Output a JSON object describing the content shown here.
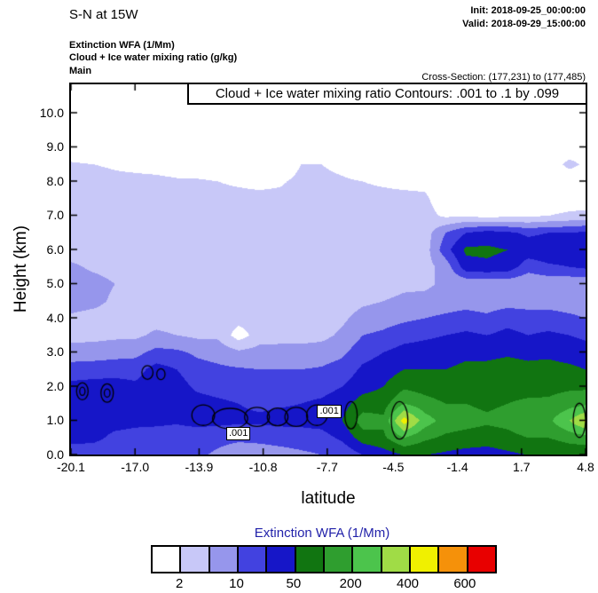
{
  "header": {
    "title": "S-N at 15W",
    "init": "Init: 2018-09-25_00:00:00",
    "valid": "Valid: 2018-09-29_15:00:00",
    "field_line1": "Extinction WFA  (1/Mm)",
    "field_line2": "Cloud + Ice water mixing ratio  (g/kg)",
    "field_line3": "Main",
    "cross_section": "Cross-Section: (177,231) to (177,485)"
  },
  "chart_data": {
    "type": "heatmap",
    "title_banner": "Cloud + Ice water mixing ratio Contours: .001 to .1 by .099",
    "field_name": "Extinction WFA (1/Mm)",
    "overlay_field": "Cloud + Ice water mixing ratio (g/kg)",
    "xlabel": "latitude",
    "ylabel": "Height (km)",
    "xlim": [
      -20.1,
      4.8
    ],
    "ylim": [
      0,
      10.83
    ],
    "grid_on": false,
    "x_ticks": [
      {
        "label": "-20.1",
        "value": -20.1
      },
      {
        "label": "-17.0",
        "value": -17.0
      },
      {
        "label": "-13.9",
        "value": -13.9
      },
      {
        "label": "-10.8",
        "value": -10.8
      },
      {
        "label": "-7.7",
        "value": -7.7
      },
      {
        "label": "-4.5",
        "value": -4.5
      },
      {
        "label": "-1.4",
        "value": -1.4
      },
      {
        "label": "1.7",
        "value": 1.7
      },
      {
        "label": "4.8",
        "value": 4.8
      }
    ],
    "y_ticks": [
      {
        "label": "0.0",
        "value": 0
      },
      {
        "label": "1.0",
        "value": 1
      },
      {
        "label": "2.0",
        "value": 2
      },
      {
        "label": "3.0",
        "value": 3
      },
      {
        "label": "4.0",
        "value": 4
      },
      {
        "label": "5.0",
        "value": 5
      },
      {
        "label": "6.0",
        "value": 6
      },
      {
        "label": "7.0",
        "value": 7
      },
      {
        "label": "8.0",
        "value": 8
      },
      {
        "label": "9.0",
        "value": 9
      },
      {
        "label": "10.0",
        "value": 10
      }
    ],
    "palette": [
      "#ffffff",
      "#c8c8f8",
      "#9696ec",
      "#4242e0",
      "#1616c8",
      "#117511",
      "#2f9e2f",
      "#4cc44c",
      "#a0dc46",
      "#f0f000",
      "#f5910a",
      "#e80000"
    ],
    "grid": {
      "lat": [
        -20.1,
        -19,
        -18,
        -17,
        -16,
        -15,
        -14,
        -13,
        -12,
        -11,
        -10,
        -9,
        -8,
        -7,
        -6,
        -5,
        -4,
        -3,
        -2,
        -1,
        0,
        1,
        2,
        3,
        4,
        4.8
      ],
      "height_km": [
        0,
        0.5,
        1,
        1.5,
        2,
        2.5,
        3,
        3.5,
        4,
        4.5,
        5,
        5.5,
        6,
        6.5,
        7,
        7.5,
        8,
        8.5,
        9,
        9.5,
        10,
        10.8
      ],
      "level_values_by_column": [
        [
          3.5,
          4.3,
          4.6,
          4.6,
          4.3,
          3.4,
          2.5,
          1.6,
          1.8,
          2.5,
          2.5,
          2.2,
          1.5,
          1.4,
          1.4,
          1.4,
          1.3,
          1.1,
          0.4,
          0.2,
          0.1,
          0.1
        ],
        [
          3.5,
          4.2,
          4.4,
          4.6,
          4.4,
          3.5,
          2.5,
          1.7,
          1.6,
          2.3,
          2.4,
          1.8,
          1.5,
          1.4,
          1.4,
          1.4,
          1.3,
          1.0,
          0.3,
          0.1,
          0.1,
          0.1
        ],
        [
          3.4,
          3.8,
          4.3,
          4.6,
          4.4,
          3.6,
          2.6,
          1.8,
          1.5,
          1.8,
          2.0,
          1.6,
          1.4,
          1.4,
          1.4,
          1.3,
          1.2,
          0.9,
          0.2,
          0.1,
          0.1,
          0.1
        ],
        [
          3.3,
          3.7,
          4.2,
          4.5,
          4.2,
          3.6,
          2.7,
          1.8,
          1.5,
          1.5,
          1.5,
          1.5,
          1.4,
          1.4,
          1.4,
          1.3,
          1.2,
          0.8,
          0.2,
          0.1,
          0.1,
          0.1
        ],
        [
          3.3,
          3.6,
          4.2,
          4.6,
          4.6,
          4.4,
          3.3,
          2.2,
          1.6,
          1.5,
          1.5,
          1.5,
          1.4,
          1.4,
          1.3,
          1.3,
          1.2,
          0.7,
          0.2,
          0.1,
          0.1,
          0.1
        ],
        [
          3.3,
          3.6,
          4.1,
          4.5,
          4.4,
          4.0,
          3.2,
          2.0,
          1.5,
          1.4,
          1.4,
          1.4,
          1.4,
          1.3,
          1.3,
          1.3,
          1.1,
          0.6,
          0.2,
          0.1,
          0.1,
          0.1
        ],
        [
          3.2,
          3.5,
          4.3,
          4.4,
          3.8,
          3.4,
          2.8,
          1.8,
          1.5,
          1.4,
          1.4,
          1.4,
          1.4,
          1.3,
          1.3,
          1.2,
          1.1,
          0.5,
          0.2,
          0.1,
          0.1,
          0.1
        ],
        [
          2.8,
          3.3,
          4.3,
          4.2,
          3.6,
          3.2,
          2.6,
          1.8,
          1.5,
          1.4,
          1.4,
          1.4,
          1.3,
          1.3,
          1.3,
          1.2,
          1.0,
          0.4,
          0.1,
          0.1,
          0.1,
          0.1
        ],
        [
          2.4,
          3.2,
          4.2,
          4.0,
          3.5,
          3.1,
          2.2,
          0.5,
          1.4,
          1.4,
          1.4,
          1.3,
          1.3,
          1.3,
          1.3,
          1.2,
          0.9,
          0.3,
          0.1,
          0.1,
          0.1,
          0.1
        ],
        [
          2.4,
          3.3,
          4.2,
          3.8,
          3.4,
          3.0,
          2.4,
          1.5,
          1.4,
          1.4,
          1.3,
          1.3,
          1.3,
          1.3,
          1.2,
          1.2,
          0.8,
          0.3,
          0.1,
          0.1,
          0.1,
          0.1
        ],
        [
          2.6,
          3.4,
          4.3,
          3.9,
          3.4,
          3.0,
          2.4,
          1.6,
          1.4,
          1.4,
          1.3,
          1.3,
          1.3,
          1.3,
          1.2,
          1.2,
          0.9,
          0.4,
          0.1,
          0.1,
          0.1,
          0.1
        ],
        [
          2.8,
          3.5,
          4.3,
          4.0,
          3.5,
          3.0,
          2.4,
          1.6,
          1.5,
          1.4,
          1.4,
          1.3,
          1.3,
          1.3,
          1.3,
          1.3,
          1.2,
          1.0,
          0.3,
          0.1,
          0.1,
          0.1
        ],
        [
          3.0,
          3.6,
          4.4,
          4.2,
          3.6,
          3.1,
          2.5,
          1.7,
          1.5,
          1.4,
          1.4,
          1.4,
          1.3,
          1.3,
          1.3,
          1.3,
          1.2,
          1.0,
          0.3,
          0.1,
          0.1,
          0.1
        ],
        [
          3.2,
          4.2,
          5.0,
          4.6,
          4.0,
          3.4,
          2.8,
          2.2,
          1.8,
          1.5,
          1.4,
          1.4,
          1.4,
          1.3,
          1.3,
          1.3,
          1.1,
          0.8,
          0.2,
          0.1,
          0.1,
          0.1
        ],
        [
          4.0,
          5.5,
          6.5,
          5.5,
          4.6,
          4.2,
          3.6,
          3.0,
          2.4,
          1.8,
          1.5,
          1.4,
          1.4,
          1.4,
          1.3,
          1.2,
          1.0,
          0.5,
          0.2,
          0.1,
          0.1,
          0.1
        ],
        [
          4.5,
          5.8,
          6.2,
          5.6,
          5.0,
          4.5,
          4.0,
          3.2,
          2.6,
          2.0,
          1.6,
          1.5,
          1.4,
          1.4,
          1.3,
          1.2,
          0.9,
          0.4,
          0.1,
          0.1,
          0.1,
          0.1
        ],
        [
          5.0,
          7.0,
          9.5,
          7.0,
          5.8,
          5.0,
          4.4,
          3.6,
          2.8,
          2.2,
          1.8,
          1.6,
          1.5,
          1.4,
          1.3,
          1.2,
          0.8,
          0.3,
          0.1,
          0.1,
          0.1,
          0.1
        ],
        [
          5.0,
          6.2,
          7.5,
          6.4,
          5.6,
          5.0,
          4.5,
          3.8,
          3.0,
          2.3,
          1.8,
          1.6,
          1.5,
          1.5,
          1.4,
          1.2,
          0.7,
          0.3,
          0.1,
          0.1,
          0.1,
          0.1
        ],
        [
          4.8,
          5.8,
          6.6,
          6.0,
          5.4,
          5.0,
          4.6,
          4.0,
          3.2,
          2.5,
          2.2,
          2.4,
          3.6,
          3.0,
          0.8,
          0.3,
          0.2,
          0.1,
          0.1,
          0.1,
          0.1,
          0.1
        ],
        [
          4.6,
          5.6,
          6.4,
          6.0,
          5.6,
          5.2,
          4.8,
          4.2,
          3.4,
          2.6,
          2.2,
          4.6,
          5.2,
          4.0,
          0.9,
          0.3,
          0.2,
          0.1,
          0.1,
          0.1,
          0.1,
          0.1
        ],
        [
          4.6,
          5.4,
          6.2,
          5.8,
          5.5,
          5.2,
          4.8,
          4.0,
          3.2,
          2.5,
          2.2,
          4.8,
          5.2,
          4.4,
          0.6,
          0.2,
          0.1,
          0.1,
          0.1,
          0.1,
          0.1,
          0.1
        ],
        [
          4.8,
          5.6,
          6.4,
          6.0,
          5.6,
          5.3,
          4.9,
          4.3,
          3.6,
          2.6,
          2.3,
          4.6,
          5.0,
          4.2,
          0.8,
          0.2,
          0.1,
          0.1,
          0.1,
          0.1,
          0.1,
          0.1
        ],
        [
          5.0,
          6.0,
          7.0,
          6.2,
          5.6,
          5.2,
          4.8,
          4.0,
          3.4,
          2.6,
          2.2,
          3.4,
          4.6,
          3.8,
          0.8,
          0.2,
          0.1,
          0.1,
          0.1,
          0.1,
          0.1,
          0.1
        ],
        [
          5.0,
          6.0,
          6.8,
          6.2,
          5.7,
          5.3,
          4.8,
          4.2,
          3.4,
          2.6,
          2.3,
          3.8,
          4.8,
          4.0,
          1.0,
          0.3,
          0.2,
          0.4,
          0.2,
          0.1,
          0.1,
          0.1
        ],
        [
          5.2,
          6.4,
          8.0,
          6.6,
          5.8,
          5.2,
          4.6,
          4.0,
          3.2,
          2.5,
          2.2,
          4.0,
          4.8,
          4.0,
          1.2,
          0.4,
          0.2,
          1.3,
          0.3,
          0.1,
          0.1,
          0.1
        ],
        [
          5.2,
          6.6,
          9.2,
          6.8,
          5.8,
          5.0,
          4.4,
          3.8,
          3.0,
          2.4,
          2.2,
          4.2,
          5.0,
          4.2,
          1.3,
          0.4,
          0.2,
          0.8,
          0.2,
          0.1,
          0.1,
          0.1
        ]
      ]
    },
    "cloud_contours": {
      "contour_value": ".001",
      "ellipses": [
        [
          -19.55,
          1.85,
          0.28,
          0.25
        ],
        [
          -19.55,
          1.85,
          0.13,
          0.12
        ],
        [
          -18.35,
          1.8,
          0.3,
          0.27
        ],
        [
          -18.35,
          1.8,
          0.14,
          0.12
        ],
        [
          -16.4,
          2.4,
          0.27,
          0.2
        ],
        [
          -15.75,
          2.35,
          0.2,
          0.16
        ],
        [
          -13.7,
          1.15,
          0.55,
          0.3
        ],
        [
          -12.4,
          1.05,
          0.85,
          0.3
        ],
        [
          -11.1,
          1.1,
          0.6,
          0.28
        ],
        [
          -10.1,
          1.1,
          0.5,
          0.26
        ],
        [
          -9.2,
          1.1,
          0.55,
          0.28
        ],
        [
          -8.2,
          1.15,
          0.5,
          0.3
        ],
        [
          -6.55,
          1.15,
          0.3,
          0.4
        ],
        [
          -4.2,
          1.0,
          0.4,
          0.55
        ],
        [
          4.5,
          1.0,
          0.3,
          0.5
        ]
      ],
      "labels": [
        {
          "text": ".001",
          "lat": -11.9,
          "km": 0.6
        },
        {
          "text": ".001",
          "lat": -7.5,
          "km": 1.25
        }
      ]
    },
    "colorbar": {
      "title": "Extinction WFA  (1/Mm)",
      "title_color": "#2222aa",
      "tick_labels": [
        "2",
        "10",
        "50",
        "200",
        "400",
        "600"
      ],
      "tick_boundary_indices": [
        1,
        3,
        5,
        7,
        9,
        11
      ]
    }
  }
}
